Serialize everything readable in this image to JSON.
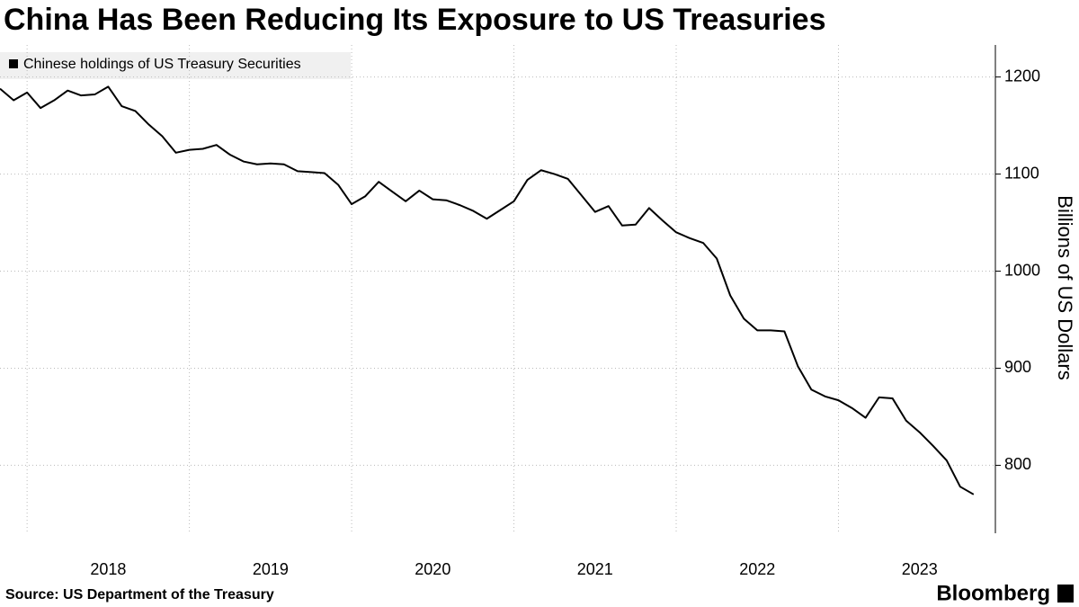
{
  "chart_data": {
    "type": "line",
    "title": "China Has Been Reducing Its Exposure to US Treasuries",
    "y_label": "Billions of US Dollars",
    "source": "Source: US Department of the Treasury",
    "brand": "Bloomberg",
    "x": [
      2017.833,
      2017.917,
      2018.0,
      2018.083,
      2018.167,
      2018.25,
      2018.333,
      2018.417,
      2018.5,
      2018.583,
      2018.667,
      2018.75,
      2018.833,
      2018.917,
      2019.0,
      2019.083,
      2019.167,
      2019.25,
      2019.333,
      2019.417,
      2019.5,
      2019.583,
      2019.667,
      2019.75,
      2019.833,
      2019.917,
      2020.0,
      2020.083,
      2020.167,
      2020.25,
      2020.333,
      2020.417,
      2020.5,
      2020.583,
      2020.667,
      2020.75,
      2020.833,
      2020.917,
      2021.0,
      2021.083,
      2021.167,
      2021.25,
      2021.333,
      2021.417,
      2021.5,
      2021.583,
      2021.667,
      2021.75,
      2021.833,
      2021.917,
      2022.0,
      2022.083,
      2022.167,
      2022.25,
      2022.333,
      2022.417,
      2022.5,
      2022.583,
      2022.667,
      2022.75,
      2022.833,
      2022.917,
      2023.0,
      2023.083,
      2023.167,
      2023.25,
      2023.333,
      2023.417,
      2023.5,
      2023.583,
      2023.667,
      2023.75,
      2023.833
    ],
    "series": [
      {
        "name": "Chinese holdings of US Treasury Securities",
        "color": "#000000",
        "values": [
          1188,
          1176,
          1184,
          1168,
          1176,
          1186,
          1181,
          1182,
          1190,
          1170,
          1165,
          1151,
          1139,
          1122,
          1125,
          1126,
          1130,
          1120,
          1113,
          1110,
          1111,
          1110,
          1103,
          1102,
          1101,
          1089,
          1069,
          1077,
          1092,
          1082,
          1072,
          1083,
          1074,
          1073,
          1068,
          1062,
          1054,
          1063,
          1072,
          1094,
          1104,
          1100,
          1095,
          1078,
          1061,
          1067,
          1047,
          1048,
          1065,
          1052,
          1040,
          1034,
          1029,
          1013,
          975,
          951,
          939,
          939,
          938,
          902,
          878,
          871,
          867,
          859,
          849,
          870,
          869,
          846,
          834,
          820,
          805,
          778,
          770
        ]
      }
    ],
    "xlim": [
      2017.833,
      2023.967
    ],
    "xticks": [
      {
        "value": 2018.5,
        "label": "2018"
      },
      {
        "value": 2019.5,
        "label": "2019"
      },
      {
        "value": 2020.5,
        "label": "2020"
      },
      {
        "value": 2021.5,
        "label": "2021"
      },
      {
        "value": 2022.5,
        "label": "2022"
      },
      {
        "value": 2023.5,
        "label": "2023"
      }
    ],
    "xgrid": [
      2018,
      2019,
      2020,
      2021,
      2022,
      2023
    ],
    "ylim": [
      730,
      1233
    ],
    "yticks": [
      800,
      900,
      1000,
      1100,
      1200
    ],
    "grid": true,
    "legend": "top-left"
  }
}
